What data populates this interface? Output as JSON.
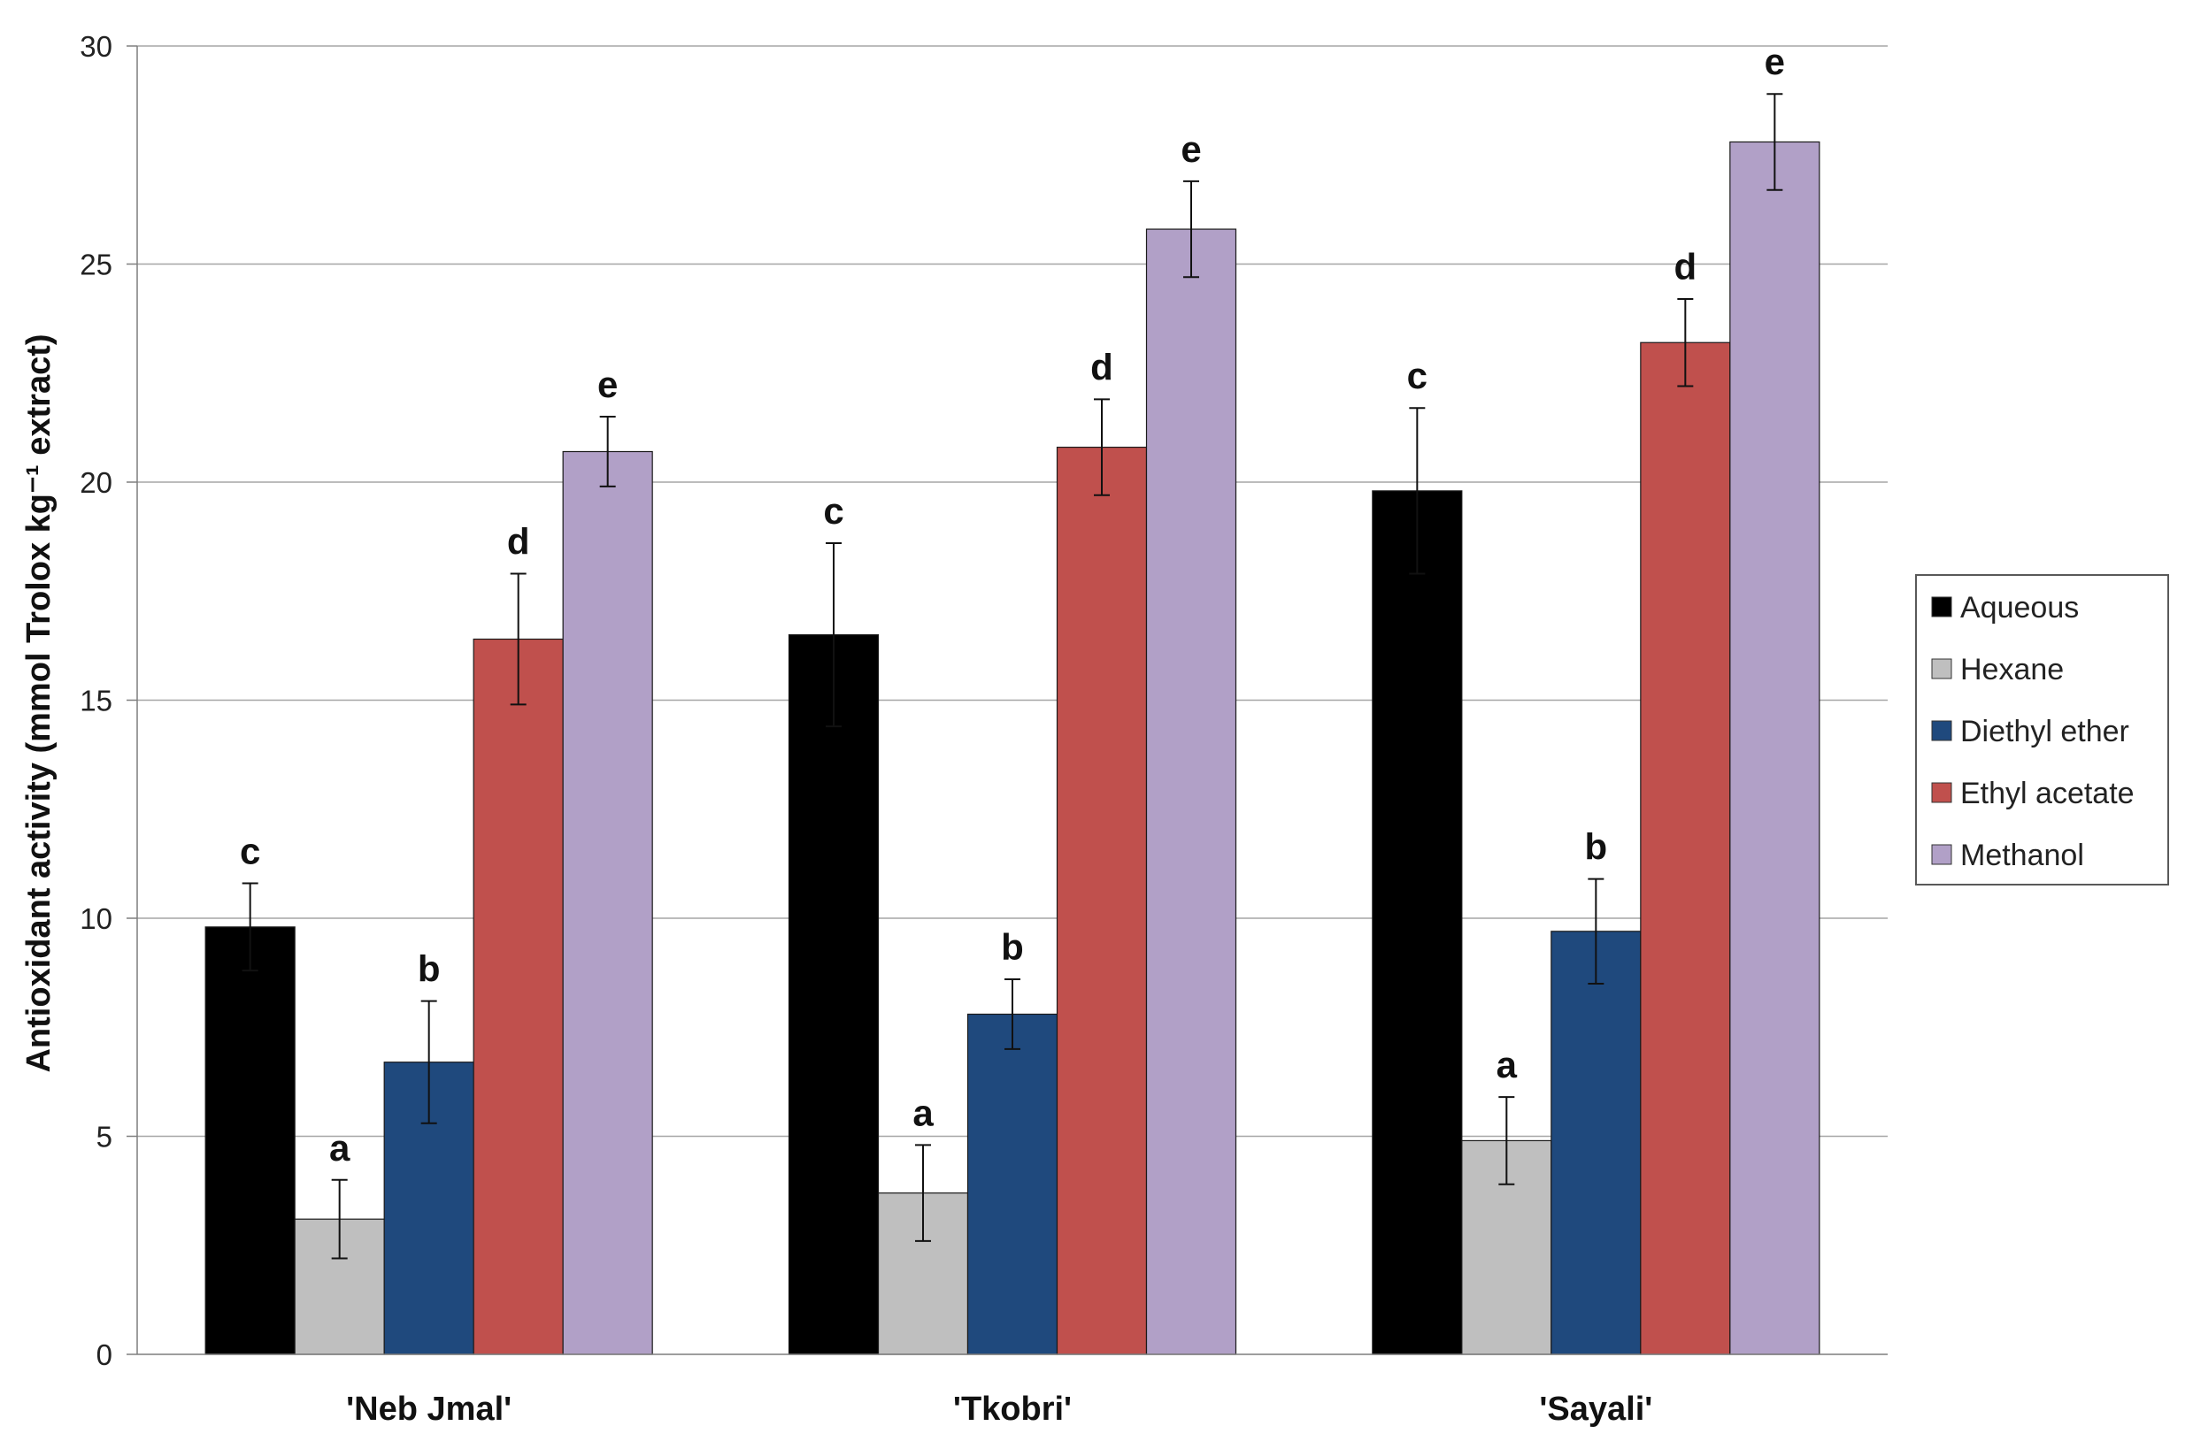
{
  "chart_data": {
    "type": "bar",
    "title": "",
    "xlabel": "",
    "ylabel": "Antioxidant activity (mmol Trolox kg⁻¹ extract)",
    "ylim": [
      0,
      30
    ],
    "yticks": [
      0,
      5,
      10,
      15,
      20,
      25,
      30
    ],
    "grid": true,
    "legend_position": "right",
    "categories": [
      "'Neb Jmal'",
      "'Tkobri'",
      "'Sayali'"
    ],
    "series": [
      {
        "name": "Aqueous",
        "color": "#000000",
        "values": [
          9.8,
          16.5,
          19.8
        ],
        "errors": [
          1.0,
          2.1,
          1.9
        ],
        "labels": [
          "c",
          "c",
          "c"
        ]
      },
      {
        "name": "Hexane",
        "color": "#bfbfbf",
        "values": [
          3.1,
          3.7,
          4.9
        ],
        "errors": [
          0.9,
          1.1,
          1.0
        ],
        "labels": [
          "a",
          "a",
          "a"
        ]
      },
      {
        "name": "Diethyl ether",
        "color": "#1f497d",
        "values": [
          6.7,
          7.8,
          9.7
        ],
        "errors": [
          1.4,
          0.8,
          1.2
        ],
        "labels": [
          "b",
          "b",
          "b"
        ]
      },
      {
        "name": "Ethyl acetate",
        "color": "#c0504d",
        "values": [
          16.4,
          20.8,
          23.2
        ],
        "errors": [
          1.5,
          1.1,
          1.0
        ],
        "labels": [
          "d",
          "d",
          "d"
        ]
      },
      {
        "name": "Methanol",
        "color": "#b1a0c7",
        "values": [
          20.7,
          25.8,
          27.8
        ],
        "errors": [
          0.8,
          1.1,
          1.1
        ],
        "labels": [
          "e",
          "e",
          "e"
        ]
      }
    ]
  }
}
